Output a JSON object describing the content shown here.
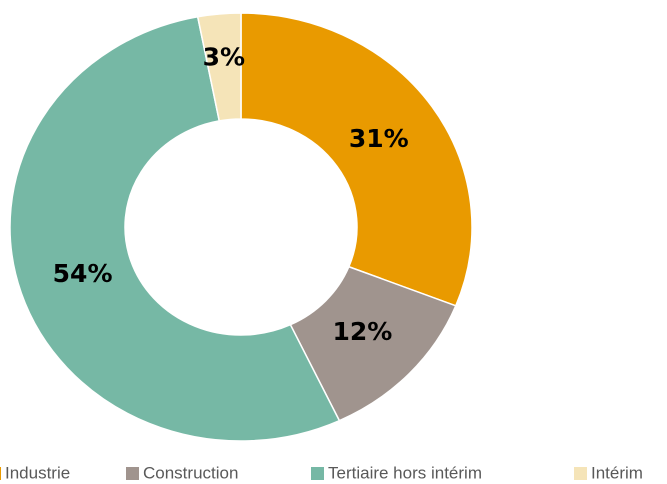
{
  "chart_data": {
    "type": "donut",
    "categories": [
      "Industrie",
      "Construction",
      "Tertiaire hors intérim",
      "Intérim"
    ],
    "values": [
      31,
      12,
      54,
      3
    ],
    "value_labels": [
      "31%",
      "12%",
      "54%",
      "3%"
    ],
    "colors": [
      "#e99a00",
      "#a0948e",
      "#76b8a5",
      "#f5e4b8"
    ],
    "legend": "bottom"
  }
}
